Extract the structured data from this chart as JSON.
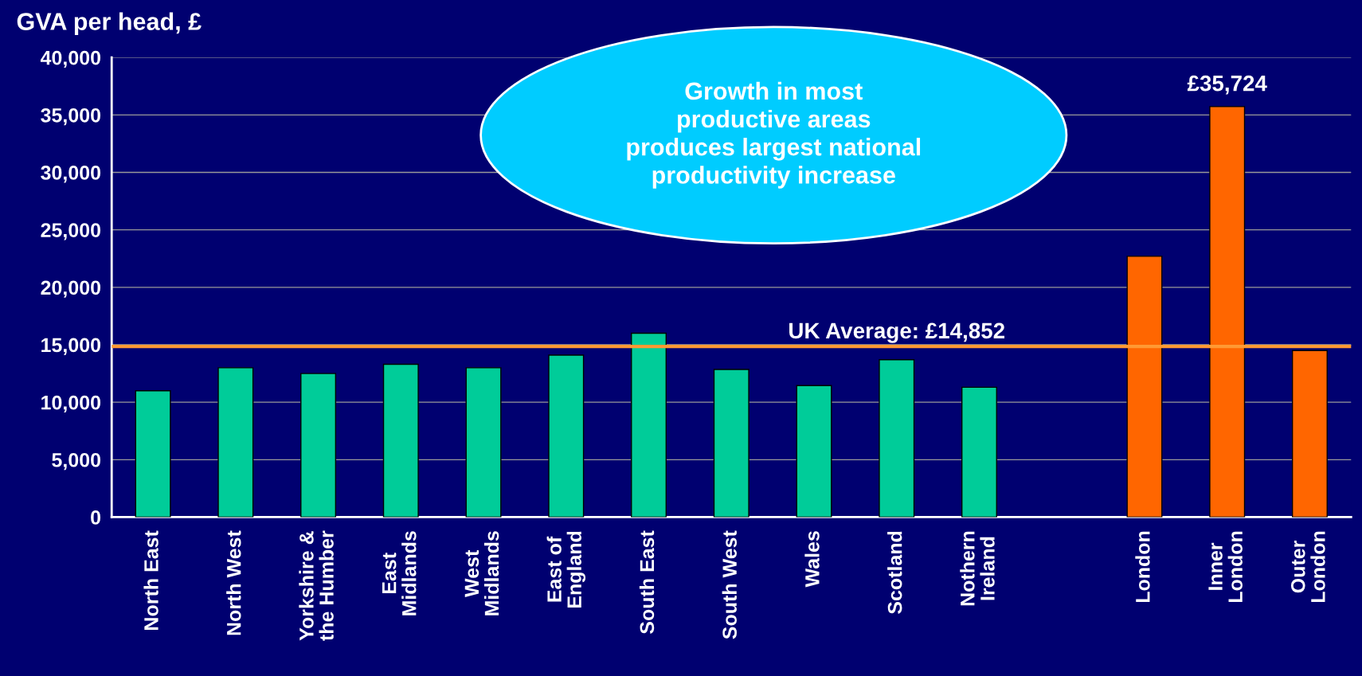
{
  "chart_data": {
    "type": "bar",
    "title": "GVA per head, £",
    "categories": [
      "North East",
      "North West",
      "Yorkshire &\nthe Humber",
      "East\nMidlands",
      "West\nMidlands",
      "East of\nEngland",
      "South East",
      "South West",
      "Wales",
      "Scotland",
      "Nothern\nIreland",
      null,
      "London",
      "Inner\nLondon",
      "Outer\nLondon"
    ],
    "values": [
      11000,
      13000,
      12500,
      13300,
      13000,
      14100,
      16000,
      12850,
      11450,
      13700,
      11300,
      null,
      22700,
      35724,
      14500
    ],
    "colors": [
      "#00cc99",
      "#00cc99",
      "#00cc99",
      "#00cc99",
      "#00cc99",
      "#00cc99",
      "#00cc99",
      "#00cc99",
      "#00cc99",
      "#00cc99",
      "#00cc99",
      "#00cc99",
      "#ff6600",
      "#ff6600",
      "#ff6600"
    ],
    "value_labels": [
      null,
      null,
      null,
      null,
      null,
      null,
      null,
      null,
      null,
      null,
      null,
      null,
      null,
      "£35,724",
      null
    ],
    "ylim": [
      0,
      40000
    ],
    "yticks": [
      0,
      {
        "value": 5000,
        "label": "5,000"
      },
      {
        "value": 10000,
        "label": "10,000"
      },
      {
        "value": 15000,
        "label": "15,000"
      },
      {
        "value": 20000,
        "label": "20,000"
      },
      {
        "value": 25000,
        "label": "25,000"
      },
      {
        "value": 30000,
        "label": "30,000"
      },
      {
        "value": 35000,
        "label": "35,000"
      },
      {
        "value": 40000,
        "label": "40,000"
      }
    ],
    "ref_lines": [
      {
        "axis": "y",
        "value": 14852,
        "label": "UK Average: £14,852",
        "color": "#ff9933"
      }
    ],
    "annotations": [
      "Growth in most\nproductive areas\nproduces largest national\nproductivity increase"
    ],
    "grid": "y"
  }
}
